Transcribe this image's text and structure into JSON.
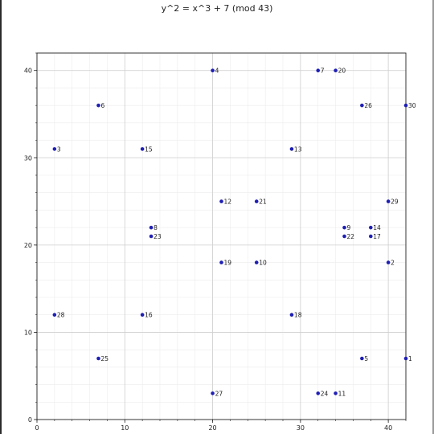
{
  "chart_data": {
    "type": "scatter",
    "title": "y^2 = x^3 + 7 (mod 43)",
    "xlabel": "",
    "ylabel": "",
    "xlim": [
      0,
      42
    ],
    "ylim": [
      0,
      42
    ],
    "x_ticks": [
      0,
      10,
      20,
      30,
      40
    ],
    "y_ticks": [
      0,
      10,
      20,
      30,
      40
    ],
    "grid": true,
    "minor_grid": true,
    "point_color": "#1f1fb4",
    "points": [
      {
        "x": 42,
        "y": 7,
        "label": "1"
      },
      {
        "x": 40,
        "y": 18,
        "label": "2"
      },
      {
        "x": 2,
        "y": 31,
        "label": "3"
      },
      {
        "x": 20,
        "y": 40,
        "label": "4"
      },
      {
        "x": 37,
        "y": 7,
        "label": "5"
      },
      {
        "x": 7,
        "y": 36,
        "label": "6"
      },
      {
        "x": 32,
        "y": 40,
        "label": "7"
      },
      {
        "x": 13,
        "y": 22,
        "label": "8"
      },
      {
        "x": 35,
        "y": 22,
        "label": "9"
      },
      {
        "x": 25,
        "y": 18,
        "label": "10"
      },
      {
        "x": 34,
        "y": 3,
        "label": "11"
      },
      {
        "x": 21,
        "y": 25,
        "label": "12"
      },
      {
        "x": 29,
        "y": 31,
        "label": "13"
      },
      {
        "x": 38,
        "y": 22,
        "label": "14"
      },
      {
        "x": 12,
        "y": 31,
        "label": "15"
      },
      {
        "x": 12,
        "y": 12,
        "label": "16"
      },
      {
        "x": 38,
        "y": 21,
        "label": "17"
      },
      {
        "x": 29,
        "y": 12,
        "label": "18"
      },
      {
        "x": 21,
        "y": 18,
        "label": "19"
      },
      {
        "x": 34,
        "y": 40,
        "label": "20"
      },
      {
        "x": 25,
        "y": 25,
        "label": "21"
      },
      {
        "x": 35,
        "y": 21,
        "label": "22"
      },
      {
        "x": 13,
        "y": 21,
        "label": "23"
      },
      {
        "x": 32,
        "y": 3,
        "label": "24"
      },
      {
        "x": 7,
        "y": 7,
        "label": "25"
      },
      {
        "x": 37,
        "y": 36,
        "label": "26"
      },
      {
        "x": 20,
        "y": 3,
        "label": "27"
      },
      {
        "x": 2,
        "y": 12,
        "label": "28"
      },
      {
        "x": 40,
        "y": 25,
        "label": "29"
      },
      {
        "x": 42,
        "y": 36,
        "label": "30"
      }
    ]
  }
}
